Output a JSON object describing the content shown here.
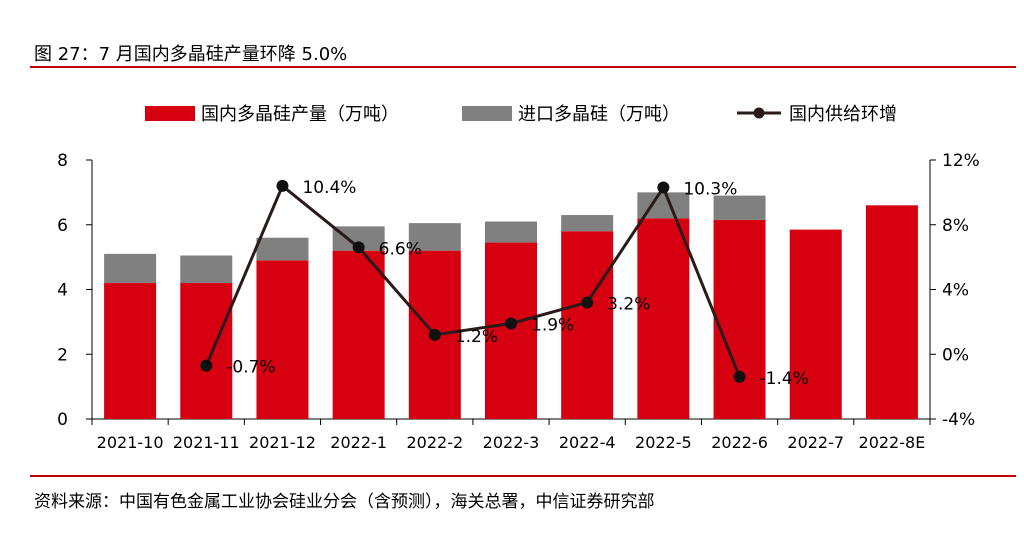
{
  "header": {
    "title": "图 27：7 月国内多晶硅产量环降 5.0%"
  },
  "footer": {
    "source": "资料来源：中国有色金属工业协会硅业分会（含预测），海关总署，中信证券研究部"
  },
  "colors": {
    "domestic": "#d70011",
    "import": "#808080",
    "line": "#2a1a1a",
    "rule": "#c00000"
  },
  "chart_data": {
    "type": "bar+line",
    "categories": [
      "2021-10",
      "2021-11",
      "2021-12",
      "2022-1",
      "2022-2",
      "2022-3",
      "2022-4",
      "2022-5",
      "2022-6",
      "2022-7",
      "2022-8E"
    ],
    "series": [
      {
        "name": "国内多晶硅产量（万吨）",
        "type": "stacked-bar",
        "axis": "left",
        "values": [
          4.2,
          4.2,
          4.9,
          5.2,
          5.2,
          5.45,
          5.8,
          6.2,
          6.15,
          5.85,
          6.6
        ]
      },
      {
        "name": "进口多晶硅（万吨）",
        "type": "stacked-bar",
        "axis": "left",
        "values": [
          0.9,
          0.85,
          0.7,
          0.75,
          0.85,
          0.65,
          0.5,
          0.8,
          0.75,
          0,
          0
        ]
      },
      {
        "name": "国内供给环增",
        "type": "line",
        "axis": "right",
        "unit": "%",
        "values": [
          null,
          -0.7,
          10.4,
          6.6,
          1.2,
          1.9,
          3.2,
          10.3,
          -1.4,
          null,
          null
        ],
        "labels": [
          null,
          "-0.7%",
          "10.4%",
          "6.6%",
          "1.2%",
          "1.9%",
          "3.2%",
          "10.3%",
          "-1.4%",
          null,
          null
        ]
      }
    ],
    "y_left": {
      "min": 0,
      "max": 8,
      "ticks": [
        "0",
        "2",
        "4",
        "6",
        "8"
      ]
    },
    "y_right": {
      "min": -4,
      "max": 12,
      "ticks": [
        "-4%",
        "0%",
        "4%",
        "8%",
        "12%"
      ]
    },
    "legend": [
      {
        "label": "国内多晶硅产量（万吨）",
        "kind": "bar",
        "color": "#d70011"
      },
      {
        "label": "进口多晶硅（万吨）",
        "kind": "bar",
        "color": "#808080"
      },
      {
        "label": "国内供给环增",
        "kind": "line",
        "color": "#2a1a1a"
      }
    ]
  }
}
